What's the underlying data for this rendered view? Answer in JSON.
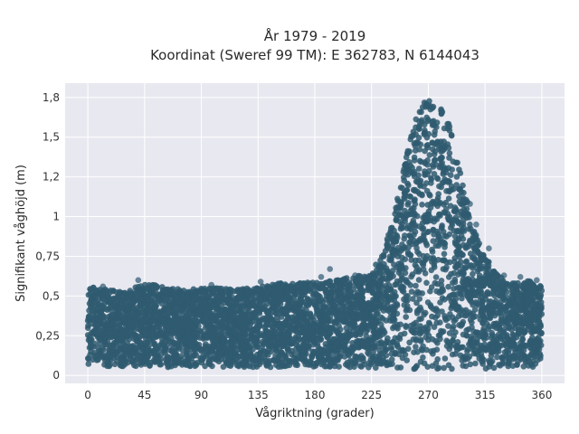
{
  "chart_data": {
    "type": "scatter",
    "title_line1": "År 1979 - 2019",
    "title_line2": "Koordinat (Sweref 99 TM): E 362783, N 6144043",
    "xlabel": "Vågriktning (grader)",
    "ylabel": "Signifikant våghöjd (m)",
    "xlim": [
      -18,
      378
    ],
    "ylim": [
      -0.05,
      1.84
    ],
    "x_ticks": [
      0,
      45,
      90,
      135,
      180,
      225,
      270,
      315,
      360
    ],
    "x_tick_labels": [
      "0",
      "45",
      "90",
      "135",
      "180",
      "225",
      "270",
      "315",
      "360"
    ],
    "y_ticks": [
      0,
      0.25,
      0.5,
      0.75,
      1,
      1.25,
      1.5,
      1.75
    ],
    "y_tick_labels": [
      "0",
      "0,25",
      "0,5",
      "0,75",
      "1",
      "1,2",
      "1,5",
      "1,8"
    ],
    "grid": true,
    "background": "#e8e8f0",
    "marker_color": "#2f5a70",
    "envelope": {
      "direction": [
        0,
        15,
        30,
        45,
        60,
        75,
        90,
        105,
        120,
        135,
        150,
        165,
        180,
        195,
        210,
        225,
        232,
        240,
        248,
        255,
        260,
        265,
        270,
        275,
        280,
        285,
        290,
        295,
        300,
        305,
        310,
        315,
        320,
        330,
        340,
        350,
        360
      ],
      "max_height": [
        0.57,
        0.54,
        0.53,
        0.58,
        0.56,
        0.54,
        0.55,
        0.55,
        0.54,
        0.56,
        0.58,
        0.58,
        0.59,
        0.6,
        0.62,
        0.65,
        0.75,
        0.92,
        1.2,
        1.48,
        1.62,
        1.7,
        1.76,
        1.72,
        1.68,
        1.62,
        1.48,
        1.3,
        1.12,
        1.0,
        0.9,
        0.78,
        0.68,
        0.6,
        0.58,
        0.6,
        0.56
      ],
      "min_height": [
        0.07,
        0.05,
        0.04,
        0.05,
        0.05,
        0.05,
        0.05,
        0.05,
        0.05,
        0.05,
        0.05,
        0.05,
        0.05,
        0.05,
        0.05,
        0.04,
        0.04,
        0.04,
        0.04,
        0.04,
        0.04,
        0.04,
        0.04,
        0.04,
        0.04,
        0.04,
        0.04,
        0.04,
        0.04,
        0.04,
        0.04,
        0.04,
        0.04,
        0.04,
        0.04,
        0.04,
        0.07
      ]
    },
    "outliers": [
      {
        "x": 12,
        "y": 0.56
      },
      {
        "x": 40,
        "y": 0.6
      },
      {
        "x": 52,
        "y": 0.55
      },
      {
        "x": 72,
        "y": 0.53
      },
      {
        "x": 98,
        "y": 0.57
      },
      {
        "x": 137,
        "y": 0.59
      },
      {
        "x": 153,
        "y": 0.58
      },
      {
        "x": 168,
        "y": 0.57
      },
      {
        "x": 185,
        "y": 0.62
      },
      {
        "x": 192,
        "y": 0.67
      },
      {
        "x": 212,
        "y": 0.63
      },
      {
        "x": 303,
        "y": 1.08
      },
      {
        "x": 308,
        "y": 0.95
      },
      {
        "x": 318,
        "y": 0.8
      },
      {
        "x": 330,
        "y": 0.63
      },
      {
        "x": 343,
        "y": 0.62
      },
      {
        "x": 356,
        "y": 0.6
      }
    ]
  }
}
